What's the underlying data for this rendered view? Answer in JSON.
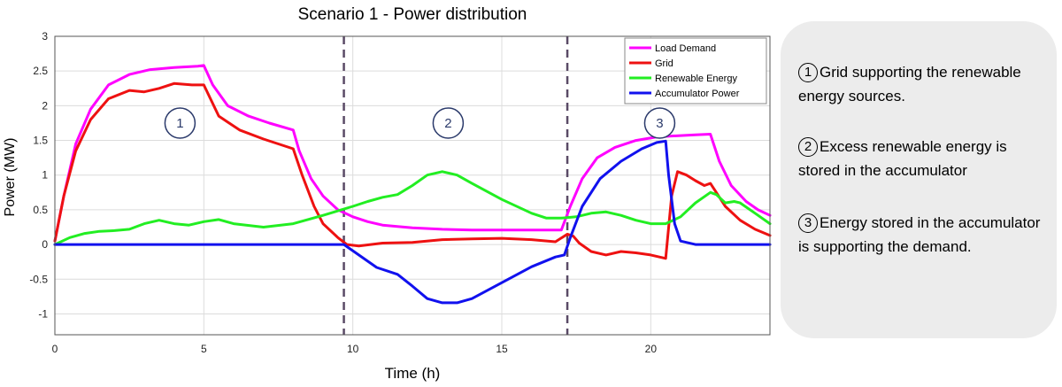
{
  "chart_data": {
    "type": "line",
    "title": "Scenario 1 - Power distribution",
    "xlabel": "Time (h)",
    "ylabel": "Power (MW)",
    "xlim": [
      0,
      24
    ],
    "ylim": [
      -1.3,
      3
    ],
    "xticks": [
      0,
      5,
      10,
      15,
      20
    ],
    "yticks": [
      -1,
      -0.5,
      0,
      0.5,
      1,
      1.5,
      2,
      2.5,
      3
    ],
    "grid": true,
    "legend_position": "top-right",
    "phase_dividers_x": [
      9.7,
      17.2
    ],
    "phase_markers": [
      {
        "label": "1",
        "x": 4.2,
        "y": 1.75
      },
      {
        "label": "2",
        "x": 13.2,
        "y": 1.75
      },
      {
        "label": "3",
        "x": 20.3,
        "y": 1.75
      }
    ],
    "series": [
      {
        "name": "Load Demand",
        "color": "#ff00ff",
        "x": [
          0,
          0.3,
          0.7,
          1.2,
          1.8,
          2.5,
          3.2,
          4.0,
          4.8,
          5.0,
          5.3,
          5.8,
          6.5,
          7.2,
          8.0,
          8.2,
          8.6,
          9.0,
          9.5,
          10.0,
          10.5,
          11.0,
          12.0,
          13.0,
          14.0,
          15.0,
          16.0,
          17.0,
          17.3,
          17.7,
          18.2,
          18.8,
          19.5,
          20.2,
          21.0,
          21.5,
          22.0,
          22.3,
          22.7,
          23.2,
          23.6,
          24.0
        ],
        "y": [
          0.05,
          0.7,
          1.45,
          1.95,
          2.3,
          2.45,
          2.52,
          2.55,
          2.57,
          2.58,
          2.3,
          2.0,
          1.85,
          1.75,
          1.65,
          1.35,
          0.95,
          0.7,
          0.5,
          0.4,
          0.33,
          0.28,
          0.24,
          0.22,
          0.21,
          0.21,
          0.21,
          0.21,
          0.55,
          0.95,
          1.25,
          1.4,
          1.5,
          1.55,
          1.57,
          1.58,
          1.59,
          1.2,
          0.85,
          0.62,
          0.5,
          0.42
        ]
      },
      {
        "name": "Grid",
        "color": "#ee1111",
        "x": [
          0,
          0.3,
          0.7,
          1.2,
          1.8,
          2.5,
          3.0,
          3.5,
          4.0,
          4.6,
          5.0,
          5.5,
          6.2,
          7.0,
          8.0,
          8.3,
          8.7,
          9.0,
          9.5,
          9.8,
          10.2,
          11.0,
          12.0,
          13.0,
          14.0,
          15.0,
          16.0,
          16.8,
          17.2,
          17.4,
          17.6,
          18.0,
          18.5,
          19.0,
          19.5,
          20.0,
          20.5,
          20.7,
          20.9,
          21.2,
          21.5,
          21.8,
          22.0,
          22.2,
          22.5,
          23.0,
          23.5,
          24.0
        ],
        "y": [
          0.05,
          0.7,
          1.35,
          1.8,
          2.1,
          2.22,
          2.2,
          2.25,
          2.32,
          2.3,
          2.3,
          1.85,
          1.65,
          1.52,
          1.38,
          1.0,
          0.55,
          0.3,
          0.1,
          0.0,
          -0.02,
          0.02,
          0.03,
          0.07,
          0.08,
          0.09,
          0.07,
          0.04,
          0.15,
          0.12,
          0.02,
          -0.1,
          -0.15,
          -0.1,
          -0.12,
          -0.15,
          -0.2,
          0.7,
          1.05,
          1.0,
          0.92,
          0.85,
          0.88,
          0.75,
          0.55,
          0.35,
          0.22,
          0.13
        ]
      },
      {
        "name": "Renewable Energy",
        "color": "#22ee22",
        "x": [
          0,
          0.5,
          1.0,
          1.5,
          2.0,
          2.5,
          3.0,
          3.5,
          4.0,
          4.5,
          5.0,
          5.5,
          6.0,
          7.0,
          8.0,
          9.0,
          10.0,
          10.5,
          11.0,
          11.5,
          12.0,
          12.5,
          13.0,
          13.5,
          14.0,
          15.0,
          16.0,
          16.5,
          17.0,
          17.5,
          18.0,
          18.5,
          19.0,
          19.5,
          20.0,
          20.5,
          21.0,
          21.5,
          22.0,
          22.2,
          22.5,
          22.8,
          23.0,
          23.5,
          24.0
        ],
        "y": [
          0.0,
          0.1,
          0.16,
          0.19,
          0.2,
          0.22,
          0.3,
          0.35,
          0.3,
          0.28,
          0.33,
          0.36,
          0.3,
          0.25,
          0.3,
          0.42,
          0.55,
          0.62,
          0.68,
          0.72,
          0.85,
          1.0,
          1.05,
          1.0,
          0.88,
          0.65,
          0.45,
          0.38,
          0.38,
          0.4,
          0.45,
          0.47,
          0.42,
          0.35,
          0.3,
          0.3,
          0.4,
          0.6,
          0.75,
          0.72,
          0.6,
          0.62,
          0.6,
          0.45,
          0.3
        ]
      },
      {
        "name": "Accumulator Power",
        "color": "#1111ee",
        "x": [
          0,
          9.7,
          10.2,
          10.8,
          11.5,
          12.0,
          12.5,
          13.0,
          13.5,
          14.0,
          15.0,
          16.0,
          16.8,
          17.1,
          17.3,
          17.7,
          18.3,
          19.0,
          19.7,
          20.2,
          20.5,
          20.6,
          20.8,
          21.0,
          21.5,
          24.0
        ],
        "y": [
          0.0,
          0.0,
          -0.15,
          -0.33,
          -0.43,
          -0.6,
          -0.78,
          -0.84,
          -0.84,
          -0.78,
          -0.55,
          -0.32,
          -0.18,
          -0.15,
          0.1,
          0.55,
          0.95,
          1.2,
          1.38,
          1.47,
          1.49,
          1.0,
          0.3,
          0.05,
          0.0,
          0.0
        ]
      }
    ]
  },
  "notes": [
    {
      "num": "1",
      "text": "Grid supporting the renewable energy sources."
    },
    {
      "num": "2",
      "text": "Excess renewable energy is stored in the accumulator"
    },
    {
      "num": "3",
      "text": "Energy stored in the accumulator is supporting the demand."
    }
  ]
}
